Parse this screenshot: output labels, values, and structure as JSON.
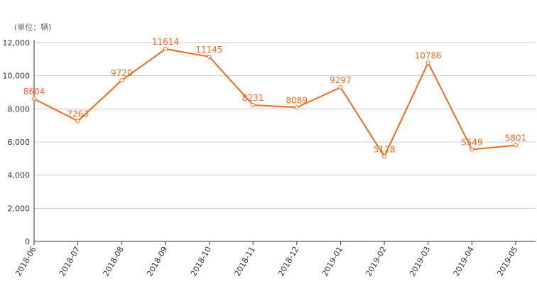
{
  "chart_data": {
    "type": "line",
    "unit_label": "(单位：辆)",
    "categories": [
      "2018-06",
      "2018-07",
      "2018-08",
      "2018-09",
      "2018-10",
      "2018-11",
      "2018-12",
      "2019-01",
      "2019-02",
      "2019-03",
      "2019-04",
      "2019-05"
    ],
    "series": [
      {
        "values": [
          8604,
          7263,
          9720,
          11614,
          11145,
          8231,
          8089,
          9297,
          5128,
          10786,
          5549,
          5801
        ]
      }
    ],
    "ylim": [
      0,
      12000
    ],
    "yticks": [
      0,
      2000,
      4000,
      6000,
      8000,
      10000,
      12000
    ],
    "ytick_labels": [
      "0",
      "2,000",
      "4,000",
      "6,000",
      "8,000",
      "10,000",
      "12,000"
    ],
    "grid": true,
    "colors": {
      "line": "#f26b1d",
      "grid": "#cccccc",
      "axis": "#333333"
    }
  }
}
